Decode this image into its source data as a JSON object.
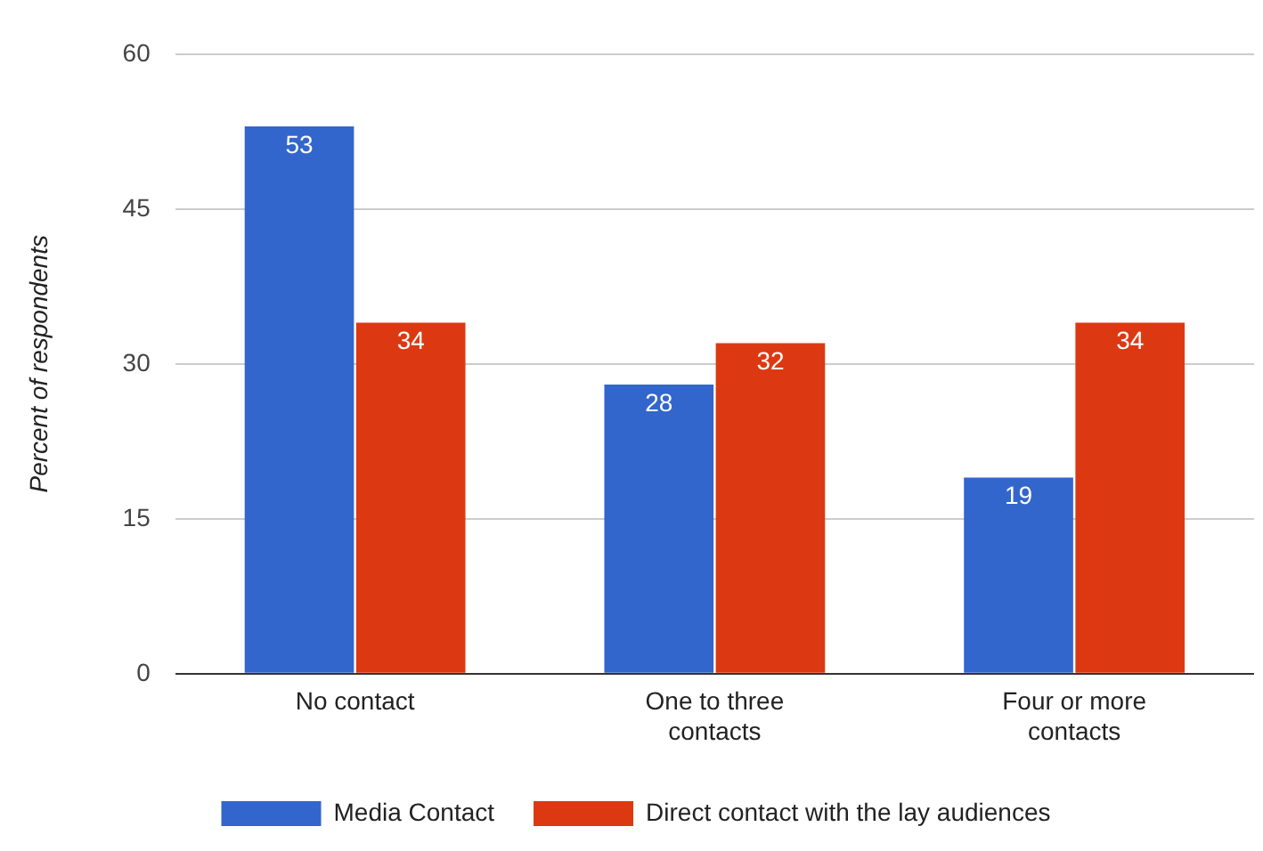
{
  "chart_data": {
    "type": "bar",
    "ylabel": "Percent of respondents",
    "categories": [
      "No contact",
      "One to three contacts",
      "Four or more contacts"
    ],
    "series": [
      {
        "name": "Media Contact",
        "color": "#3366cc",
        "values": [
          53,
          28,
          19
        ]
      },
      {
        "name": "Direct contact with the lay audiences",
        "color": "#dc3912",
        "values": [
          34,
          32,
          34
        ]
      }
    ],
    "ylim": [
      0,
      60
    ],
    "yticks": [
      0,
      15,
      30,
      45,
      60
    ],
    "grid": "y",
    "legend": "bottom",
    "data_labels": true
  }
}
